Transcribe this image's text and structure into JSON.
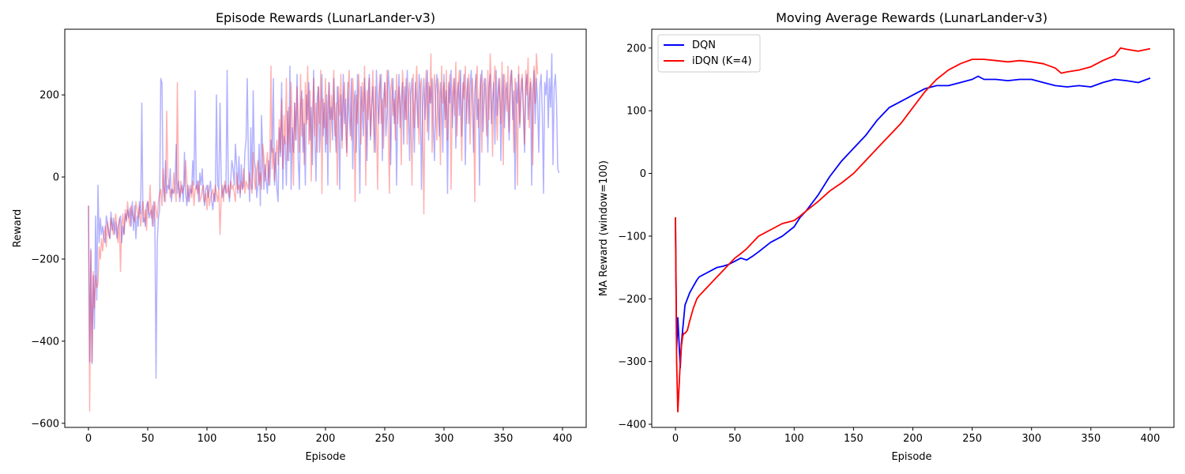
{
  "chart_data": [
    {
      "type": "line",
      "title": "Episode Rewards (LunarLander-v3)",
      "xlabel": "Episode",
      "ylabel": "Reward",
      "xlim": [
        -20,
        420
      ],
      "ylim": [
        -610,
        360
      ],
      "xticks": [
        0,
        50,
        100,
        150,
        200,
        250,
        300,
        350,
        400
      ],
      "yticks": [
        -600,
        -400,
        -200,
        0,
        200
      ],
      "grid": false,
      "legend": "none",
      "colors": {
        "DQN": "#0000ff",
        "iDQN": "#ff0000"
      },
      "alpha": 0.3,
      "series": [
        {
          "key": "DQN",
          "values": [
            -70,
            -450,
            -175,
            -455,
            -240,
            -370,
            -95,
            -300,
            -20,
            -160,
            -100,
            -140,
            -120,
            -150,
            -160,
            -95,
            -110,
            -140,
            -150,
            -85,
            -130,
            -100,
            -140,
            -110,
            -150,
            -120,
            -110,
            -95,
            -160,
            -120,
            -140,
            -90,
            -105,
            -80,
            -100,
            -75,
            -120,
            -60,
            -130,
            -70,
            -150,
            -95,
            -120,
            -60,
            -90,
            180,
            -110,
            -100,
            -120,
            -70,
            -60,
            -100,
            -90,
            -80,
            -120,
            -60,
            -95,
            -490,
            -160,
            -100,
            -80,
            240,
            230,
            -20,
            -60,
            40,
            -40,
            -20,
            -30,
            20,
            -60,
            -30,
            -40,
            -20,
            80,
            -40,
            -10,
            -60,
            -30,
            -20,
            -60,
            60,
            -40,
            -70,
            -20,
            -60,
            -30,
            -40,
            40,
            -20,
            210,
            -30,
            -10,
            -60,
            10,
            -20,
            20,
            -50,
            -70,
            -30,
            -20,
            -50,
            -30,
            -10,
            -60,
            -80,
            -40,
            -60,
            200,
            -20,
            -30,
            180,
            -10,
            -50,
            -30,
            -20,
            -40,
            260,
            -30,
            -60,
            -10,
            40,
            20,
            -20,
            80,
            30,
            -40,
            50,
            -50,
            30,
            -30,
            -20,
            60,
            90,
            240,
            30,
            -60,
            120,
            -30,
            210,
            40,
            20,
            -50,
            -20,
            80,
            -70,
            150,
            60,
            -30,
            30,
            -10,
            -40,
            40,
            -20,
            90,
            60,
            240,
            -20,
            60,
            -30,
            -60,
            120,
            50,
            230,
            -30,
            100,
            80,
            -20,
            160,
            40,
            270,
            -30,
            120,
            60,
            180,
            90,
            250,
            40,
            -30,
            170,
            210,
            60,
            130,
            -20,
            200,
            140,
            230,
            90,
            170,
            30,
            260,
            110,
            -10,
            190,
            220,
            60,
            140,
            250,
            100,
            180,
            60,
            200,
            -20,
            230,
            140,
            170,
            90,
            240,
            120,
            60,
            220,
            170,
            -30,
            200,
            90,
            250,
            130,
            190,
            60,
            230,
            150,
            100,
            240,
            20,
            180,
            210,
            60,
            250,
            130,
            -40,
            220,
            170,
            100,
            240,
            160,
            40,
            200,
            250,
            90,
            170,
            220,
            120,
            60,
            260,
            180,
            130,
            220,
            250,
            40,
            190,
            230,
            100,
            160,
            260,
            210,
            30,
            180,
            240,
            130,
            210,
            -20,
            170,
            250,
            120,
            190,
            230,
            80,
            220,
            140,
            260,
            180,
            40,
            200,
            240,
            160,
            60,
            230,
            190,
            120,
            250,
            210,
            -30,
            170,
            240,
            140,
            200,
            260,
            90,
            220,
            180,
            240,
            120,
            40,
            210,
            250,
            170,
            100,
            230,
            190,
            60,
            250,
            140,
            210,
            -40,
            230,
            180,
            260,
            120,
            200,
            240,
            70,
            190,
            230,
            150,
            260,
            100,
            210,
            250,
            30,
            180,
            240,
            130,
            220,
            260,
            170,
            60,
            210,
            250,
            140,
            190,
            -20,
            230,
            260,
            110,
            200,
            240,
            170,
            60,
            220,
            250,
            130,
            190,
            230,
            80,
            260,
            150,
            210,
            240,
            40,
            180,
            250,
            120,
            200,
            230,
            170,
            90,
            240,
            260,
            140,
            210,
            -30,
            230,
            180,
            250,
            120,
            200,
            240,
            160,
            60,
            220,
            250,
            140,
            190,
            230,
            -20,
            210,
            260,
            130,
            240,
            180,
            60,
            220,
            250,
            150,
            -40,
            230,
            200,
            260,
            120,
            240,
            170,
            300,
            30,
            220,
            250,
            180,
            20,
            10
          ]
        },
        {
          "key": "iDQN",
          "values": [
            -70,
            -570,
            -180,
            -450,
            -230,
            -320,
            -240,
            -270,
            -260,
            -170,
            -200,
            -150,
            -180,
            -140,
            -120,
            -170,
            -110,
            -130,
            -150,
            -100,
            -120,
            -140,
            -110,
            -90,
            -130,
            -160,
            -100,
            -230,
            -120,
            -90,
            -140,
            -80,
            -110,
            -60,
            -100,
            -120,
            -70,
            -90,
            -100,
            -110,
            -60,
            -80,
            -100,
            -70,
            -120,
            -90,
            -60,
            -110,
            -80,
            -130,
            -60,
            -90,
            -20,
            -100,
            -70,
            -120,
            -60,
            -80,
            -100,
            -60,
            -40,
            -30,
            -70,
            20,
            -30,
            -60,
            160,
            0,
            -20,
            -50,
            -30,
            -40,
            10,
            -30,
            -60,
            230,
            -20,
            -50,
            -10,
            -40,
            -30,
            -20,
            40,
            -10,
            -60,
            -30,
            -20,
            -50,
            -10,
            -70,
            -30,
            -20,
            -40,
            -10,
            -60,
            -50,
            -30,
            -20,
            -60,
            -40,
            -80,
            -20,
            -70,
            -50,
            -40,
            -30,
            -60,
            -20,
            -40,
            -60,
            -30,
            -140,
            -50,
            -20,
            -60,
            -10,
            -30,
            -40,
            -20,
            -50,
            -10,
            -30,
            -20,
            -40,
            -60,
            10,
            -30,
            -20,
            -40,
            -10,
            -30,
            20,
            -40,
            -10,
            -20,
            -30,
            10,
            -20,
            -40,
            60,
            -10,
            -30,
            20,
            40,
            -20,
            10,
            -30,
            80,
            50,
            -10,
            30,
            60,
            -20,
            40,
            270,
            20,
            70,
            -10,
            50,
            90,
            30,
            140,
            60,
            190,
            20,
            150,
            80,
            240,
            40,
            170,
            60,
            230,
            120,
            -20,
            180,
            90,
            220,
            140,
            60,
            250,
            100,
            190,
            30,
            230,
            130,
            270,
            80,
            210,
            -10,
            150,
            240,
            100,
            180,
            60,
            220,
            130,
            260,
            -40,
            190,
            120,
            240,
            80,
            170,
            230,
            60,
            200,
            140,
            260,
            100,
            180,
            -20,
            220,
            150,
            250,
            70,
            190,
            230,
            120,
            50,
            210,
            260,
            160,
            90,
            240,
            180,
            -60,
            200,
            130,
            250,
            190,
            80,
            230,
            160,
            270,
            -20,
            210,
            140,
            240,
            100,
            180,
            260,
            60,
            220,
            150,
            -30,
            200,
            250,
            130,
            190,
            70,
            230,
            170,
            260,
            110,
            -40,
            210,
            240,
            150,
            190,
            90,
            250,
            130,
            220,
            180,
            30,
            260,
            200,
            140,
            240,
            80,
            190,
            230,
            160,
            -20,
            250,
            120,
            210,
            270,
            170,
            80,
            220,
            240,
            140,
            -90,
            200,
            260,
            110,
            230,
            180,
            300,
            60,
            210,
            250,
            160,
            90,
            240,
            200,
            30,
            270,
            180,
            230,
            120,
            260,
            90,
            210,
            250,
            -30,
            190,
            240,
            150,
            280,
            100,
            220,
            260,
            170,
            40,
            230,
            190,
            270,
            130,
            210,
            250,
            80,
            200,
            240,
            160,
            -60,
            230,
            270,
            120,
            190,
            250,
            60,
            220,
            240,
            180,
            100,
            260,
            140,
            300,
            210,
            50,
            230,
            270,
            170,
            90,
            240,
            200,
            130,
            280,
            30,
            250,
            210,
            160,
            270,
            110,
            220,
            260,
            190,
            60,
            240,
            180,
            -20,
            270,
            130,
            230,
            250,
            170,
            80,
            260,
            200,
            290,
            120,
            240,
            210,
            30,
            270,
            180,
            300,
            250
          ]
        }
      ]
    },
    {
      "type": "line",
      "title": "Moving Average Rewards (LunarLander-v3)",
      "xlabel": "Episode",
      "ylabel": "MA Reward (window=100)",
      "xlim": [
        -20,
        420
      ],
      "ylim": [
        -405,
        230
      ],
      "xticks": [
        0,
        50,
        100,
        150,
        200,
        250,
        300,
        350,
        400
      ],
      "yticks": [
        -400,
        -300,
        -200,
        -100,
        0,
        100,
        200
      ],
      "grid": false,
      "legend": "top-left",
      "colors": {
        "DQN": "#0000ff",
        "iDQN": "#ff0000"
      },
      "series": [
        {
          "name": "DQN",
          "x": [
            0,
            1,
            2,
            3,
            4,
            5,
            6,
            7,
            8,
            10,
            12,
            15,
            18,
            20,
            25,
            30,
            35,
            40,
            45,
            50,
            55,
            60,
            65,
            70,
            80,
            90,
            100,
            105,
            110,
            120,
            130,
            140,
            150,
            160,
            170,
            180,
            190,
            200,
            210,
            220,
            230,
            240,
            250,
            255,
            260,
            270,
            280,
            290,
            300,
            310,
            320,
            330,
            340,
            350,
            360,
            370,
            380,
            390,
            400
          ],
          "y": [
            -70,
            -280,
            -230,
            -270,
            -310,
            -270,
            -250,
            -230,
            -210,
            -200,
            -190,
            -180,
            -170,
            -165,
            -160,
            -155,
            -150,
            -148,
            -145,
            -140,
            -135,
            -138,
            -132,
            -125,
            -110,
            -100,
            -85,
            -70,
            -60,
            -35,
            -5,
            20,
            40,
            60,
            85,
            105,
            115,
            125,
            135,
            140,
            140,
            145,
            150,
            155,
            150,
            150,
            148,
            150,
            150,
            145,
            140,
            138,
            140,
            138,
            145,
            150,
            148,
            145,
            152
          ]
        },
        {
          "name": "iDQN (K=4)",
          "x": [
            0,
            1,
            2,
            3,
            4,
            5,
            6,
            7,
            8,
            10,
            12,
            15,
            18,
            20,
            25,
            30,
            35,
            40,
            45,
            50,
            55,
            60,
            65,
            70,
            80,
            90,
            100,
            105,
            110,
            120,
            130,
            140,
            150,
            160,
            170,
            180,
            190,
            200,
            210,
            220,
            230,
            240,
            250,
            260,
            270,
            280,
            290,
            300,
            310,
            320,
            325,
            330,
            340,
            350,
            360,
            370,
            375,
            380,
            390,
            400
          ],
          "y": [
            -70,
            -300,
            -380,
            -340,
            -300,
            -275,
            -260,
            -255,
            -255,
            -250,
            -235,
            -215,
            -200,
            -195,
            -185,
            -175,
            -165,
            -155,
            -145,
            -135,
            -128,
            -120,
            -110,
            -100,
            -90,
            -80,
            -75,
            -68,
            -60,
            -45,
            -28,
            -15,
            0,
            20,
            40,
            60,
            80,
            105,
            130,
            150,
            165,
            175,
            182,
            182,
            180,
            178,
            180,
            178,
            175,
            168,
            160,
            162,
            165,
            170,
            180,
            188,
            200,
            198,
            195,
            199
          ]
        }
      ]
    }
  ]
}
